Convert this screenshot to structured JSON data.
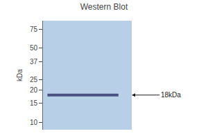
{
  "chart_data": {
    "type": "line",
    "title": "Western Blot",
    "ylabel": "kDa",
    "values": [
      18
    ],
    "color": "#4a5080",
    "annotations": [
      {
        "text": "18kDa",
        "y": 18
      }
    ],
    "ylim": [
      8.5,
      90
    ],
    "yticks": [
      75,
      50,
      37,
      25,
      20,
      15,
      10
    ],
    "log": "y",
    "grid": false
  }
}
